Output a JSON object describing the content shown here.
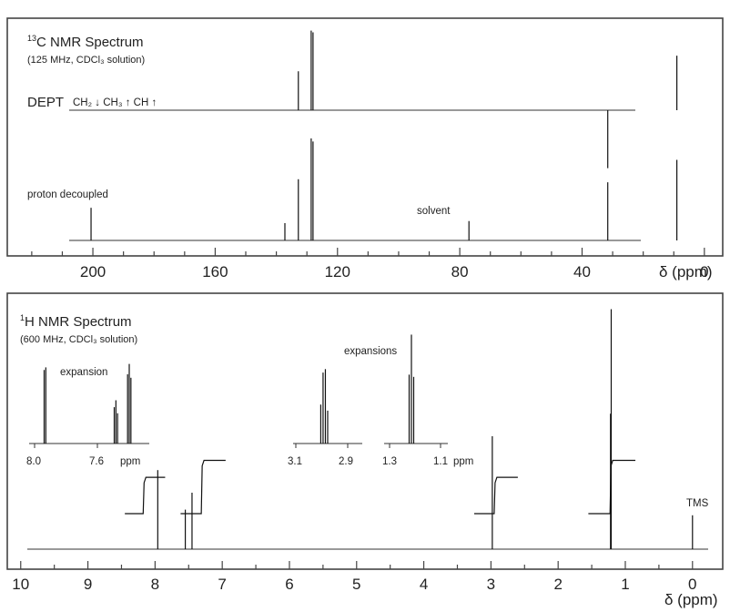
{
  "chart_data": [
    {
      "type": "line",
      "panel": "13C",
      "title_sup": "13",
      "title_rest": "C NMR Spectrum",
      "subtitle": "(125 MHz, CDCl₃ solution)",
      "dept_label": "DEPT",
      "dept_legend": "CH₂ ↓ CH₃ ↑ CH ↑",
      "decoupled_label": "proton decoupled",
      "solvent_label": "solvent",
      "xlabel": "δ (ppm)",
      "x_ticks": [
        "200",
        "160",
        "120",
        "80",
        "40",
        "0"
      ],
      "x_tick_values": [
        200,
        160,
        120,
        80,
        40,
        0
      ],
      "xlim": [
        228,
        -6
      ],
      "series": [
        {
          "trace": "DEPT",
          "peaks": [
            {
              "x": 132.8,
              "height": 0.45,
              "dir": "up"
            },
            {
              "x": 128.6,
              "height": 0.92,
              "dir": "up"
            },
            {
              "x": 128.0,
              "height": 0.9,
              "dir": "up"
            },
            {
              "x": 31.6,
              "height": 0.67,
              "dir": "down"
            },
            {
              "x": 9.0,
              "height": 0.63,
              "dir": "up"
            }
          ]
        },
        {
          "trace": "proton decoupled",
          "peaks": [
            {
              "x": 200.6,
              "height": 0.32
            },
            {
              "x": 137.2,
              "height": 0.17
            },
            {
              "x": 132.8,
              "height": 0.6
            },
            {
              "x": 128.6,
              "height": 1.0
            },
            {
              "x": 128.0,
              "height": 0.97
            },
            {
              "x": 77.0,
              "height": 0.19
            },
            {
              "x": 31.6,
              "height": 0.57
            },
            {
              "x": 9.0,
              "height": 0.79
            }
          ]
        }
      ]
    },
    {
      "type": "line",
      "panel": "1H",
      "title_sup": "1",
      "title_rest": "H NMR Spectrum",
      "subtitle": "(600 MHz, CDCl₃ solution)",
      "xlabel": "δ (ppm)",
      "x_ticks": [
        "10",
        "9",
        "8",
        "7",
        "6",
        "5",
        "4",
        "3",
        "2",
        "1",
        "0"
      ],
      "x_tick_values": [
        10,
        9,
        8,
        7,
        6,
        5,
        4,
        3,
        2,
        1,
        0
      ],
      "xlim": [
        10.2,
        -0.45
      ],
      "tms_label": "TMS",
      "peaks": [
        {
          "x": 7.96,
          "height": 0.28
        },
        {
          "x": 7.55,
          "height": 0.14
        },
        {
          "x": 7.45,
          "height": 0.2
        },
        {
          "x": 2.98,
          "height": 0.4
        },
        {
          "x": 1.22,
          "height": 0.48
        },
        {
          "x": 1.21,
          "height": 0.85
        },
        {
          "x": 0.0,
          "height": 0.12
        }
      ],
      "integrals": [
        {
          "from": 8.45,
          "to": 7.85,
          "step": 0.15
        },
        {
          "from": 7.62,
          "to": 6.95,
          "step": 0.22
        },
        {
          "from": 3.25,
          "to": 2.6,
          "step": 0.15
        },
        {
          "from": 1.55,
          "to": 0.85,
          "step": 0.22
        }
      ],
      "insets": [
        {
          "label": "expansion",
          "ticks": [
            "8.0",
            "7.6",
            "ppm"
          ],
          "peaks": [
            {
              "x": 7.97,
              "height": 0.85
            },
            {
              "x": 7.96,
              "height": 0.88
            },
            {
              "x": 7.55,
              "height": 0.42
            },
            {
              "x": 7.54,
              "height": 0.5
            },
            {
              "x": 7.53,
              "height": 0.35
            },
            {
              "x": 7.47,
              "height": 0.8
            },
            {
              "x": 7.46,
              "height": 0.92
            },
            {
              "x": 7.45,
              "height": 0.76
            }
          ]
        },
        {
          "label": "expansions",
          "ticks": [
            "3.1",
            "2.9"
          ],
          "peaks": [
            {
              "x": 3.0,
              "height": 0.45
            },
            {
              "x": 2.99,
              "height": 0.82
            },
            {
              "x": 2.98,
              "height": 0.86
            },
            {
              "x": 2.97,
              "height": 0.38
            }
          ]
        },
        {
          "label": "",
          "ticks": [
            "1.3",
            "1.1",
            "ppm"
          ],
          "peaks": [
            {
              "x": 1.23,
              "height": 0.62
            },
            {
              "x": 1.22,
              "height": 0.98
            },
            {
              "x": 1.21,
              "height": 0.6
            }
          ]
        }
      ]
    }
  ]
}
